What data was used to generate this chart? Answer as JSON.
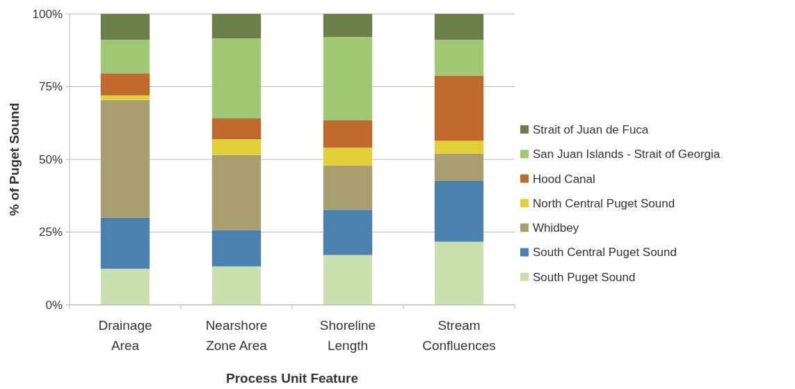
{
  "chart_data": {
    "type": "bar",
    "stacked": true,
    "xlabel": "Process Unit Feature",
    "ylabel": "% of Puget Sound",
    "categories": [
      "Drainage\nArea",
      "Nearshore\nZone Area",
      "Shoreline\nLength",
      "Stream\nConfluences"
    ],
    "series": [
      {
        "name": "South Puget Sound",
        "color": "#cadfae",
        "values": [
          12.4,
          13.2,
          17.1,
          21.7
        ]
      },
      {
        "name": "South Central Puget Sound",
        "color": "#4a82ad",
        "values": [
          17.6,
          12.5,
          15.6,
          20.9
        ]
      },
      {
        "name": "Whidbey",
        "color": "#a99e70",
        "values": [
          40.4,
          25.8,
          15.2,
          9.4
        ]
      },
      {
        "name": "North Central Puget Sound",
        "color": "#e2d136",
        "values": [
          1.6,
          5.4,
          6.1,
          4.4
        ]
      },
      {
        "name": "Hood Canal",
        "color": "#c06a2e",
        "values": [
          7.6,
          7.2,
          9.4,
          22.4
        ]
      },
      {
        "name": "San Juan Islands - Strait of Georgia",
        "color": "#a0c874",
        "values": [
          11.5,
          27.5,
          28.7,
          12.3
        ]
      },
      {
        "name": "Strait of Juan de Fuca",
        "color": "#6b7f4b",
        "values": [
          8.9,
          8.4,
          7.9,
          8.9
        ]
      }
    ],
    "ylim": [
      0,
      100
    ],
    "yticks": [
      {
        "value": 0,
        "label": "0%"
      },
      {
        "value": 25,
        "label": "25%"
      },
      {
        "value": 50,
        "label": "50%"
      },
      {
        "value": 75,
        "label": "75%"
      },
      {
        "value": 100,
        "label": "100%"
      }
    ],
    "grid": "y",
    "legend": "right"
  }
}
